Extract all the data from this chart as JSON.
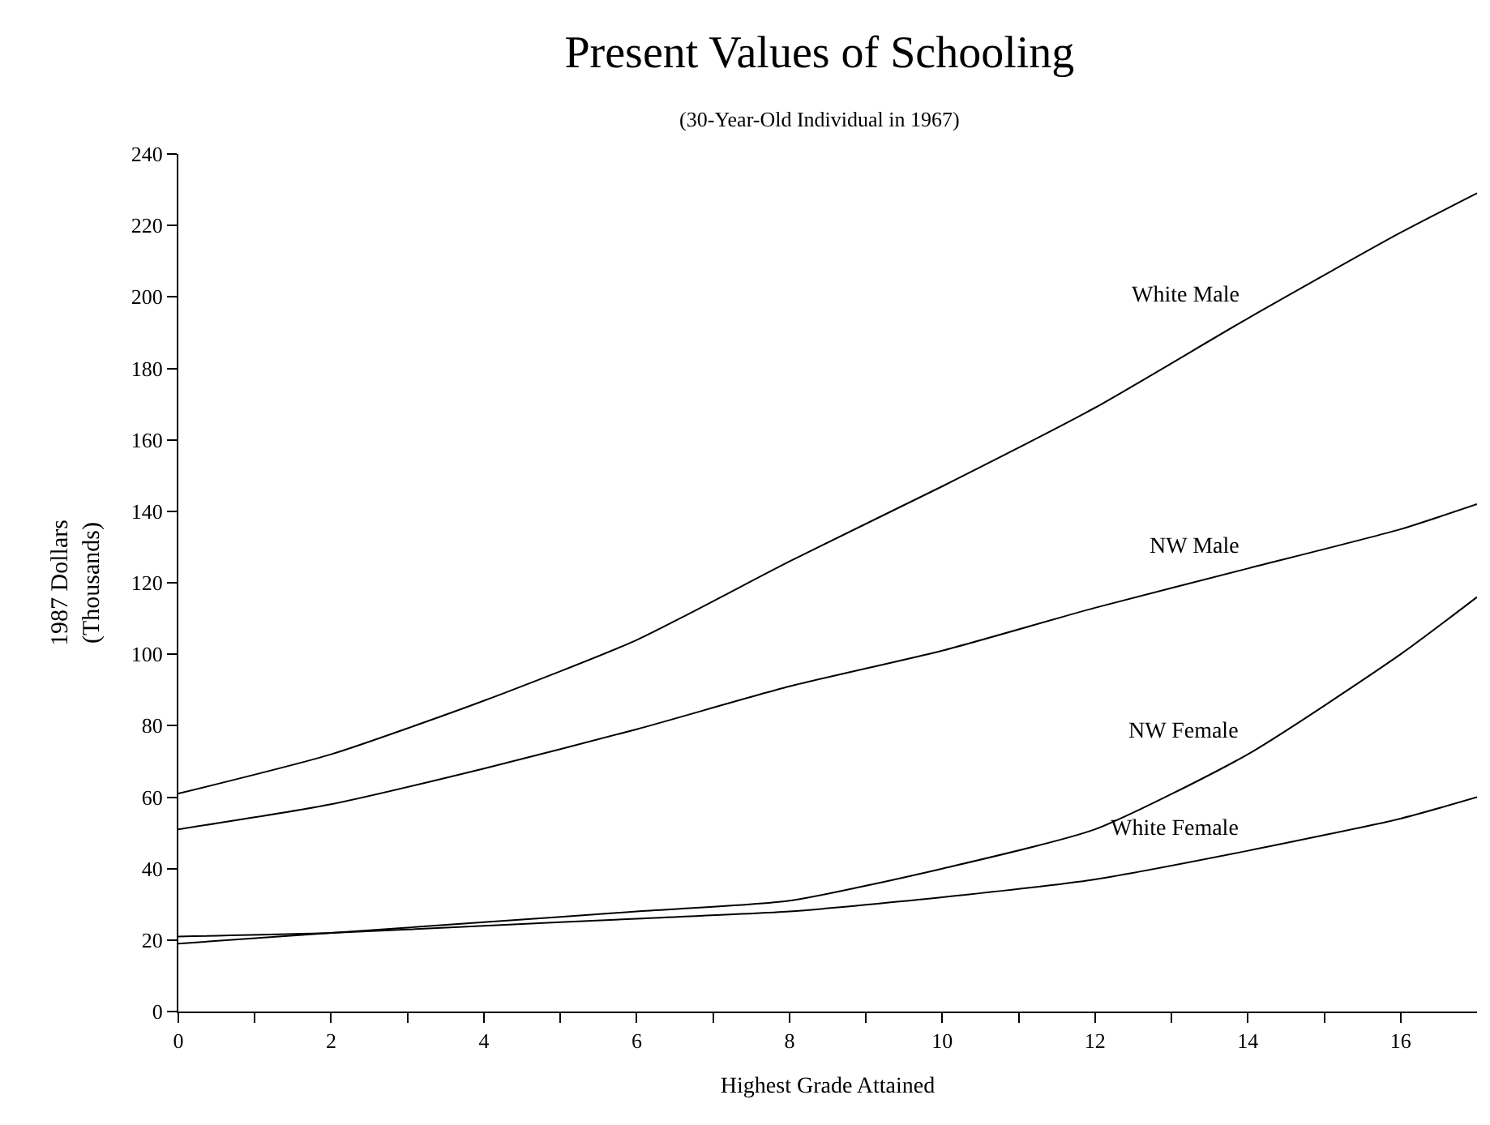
{
  "chart_data": {
    "type": "line",
    "title": "Present Values of Schooling",
    "subtitle": "(30-Year-Old Individual in 1967)",
    "xlabel": "Highest Grade Attained",
    "ylabel": "1987 Dollars\n(Thousands)",
    "x": [
      0,
      2,
      4,
      6,
      8,
      10,
      12,
      14,
      16,
      17
    ],
    "series": [
      {
        "name": "White Male",
        "color": "#000000",
        "values": [
          61,
          72,
          87,
          104,
          126,
          147,
          169,
          194,
          218,
          229
        ]
      },
      {
        "name": "NW Male",
        "color": "#000000",
        "values": [
          51,
          58,
          68,
          79,
          91,
          101,
          113,
          124,
          135,
          142
        ]
      },
      {
        "name": "NW Female",
        "color": "#000000",
        "values": [
          19,
          22,
          25,
          28,
          31,
          40,
          51,
          72,
          100,
          116
        ]
      },
      {
        "name": "White Female",
        "color": "#000000",
        "values": [
          21,
          22,
          24,
          26,
          28,
          32,
          37,
          45,
          54,
          60
        ]
      }
    ],
    "xlim": [
      0,
      17
    ],
    "ylim": [
      0,
      240
    ],
    "xticks": [
      0,
      {
        "value": 1,
        "label": null
      },
      2,
      {
        "value": 3,
        "label": null
      },
      4,
      {
        "value": 5,
        "label": null
      },
      6,
      {
        "value": 7,
        "label": null
      },
      8,
      {
        "value": 9,
        "label": null
      },
      10,
      {
        "value": 11,
        "label": null
      },
      12,
      {
        "value": 13,
        "label": null
      },
      14,
      {
        "value": 15,
        "label": null
      },
      16
    ],
    "yticks": [
      0,
      20,
      40,
      60,
      80,
      100,
      120,
      140,
      160,
      180,
      200,
      220,
      240
    ],
    "legend": false,
    "marker": "none",
    "line_style": "solid"
  }
}
